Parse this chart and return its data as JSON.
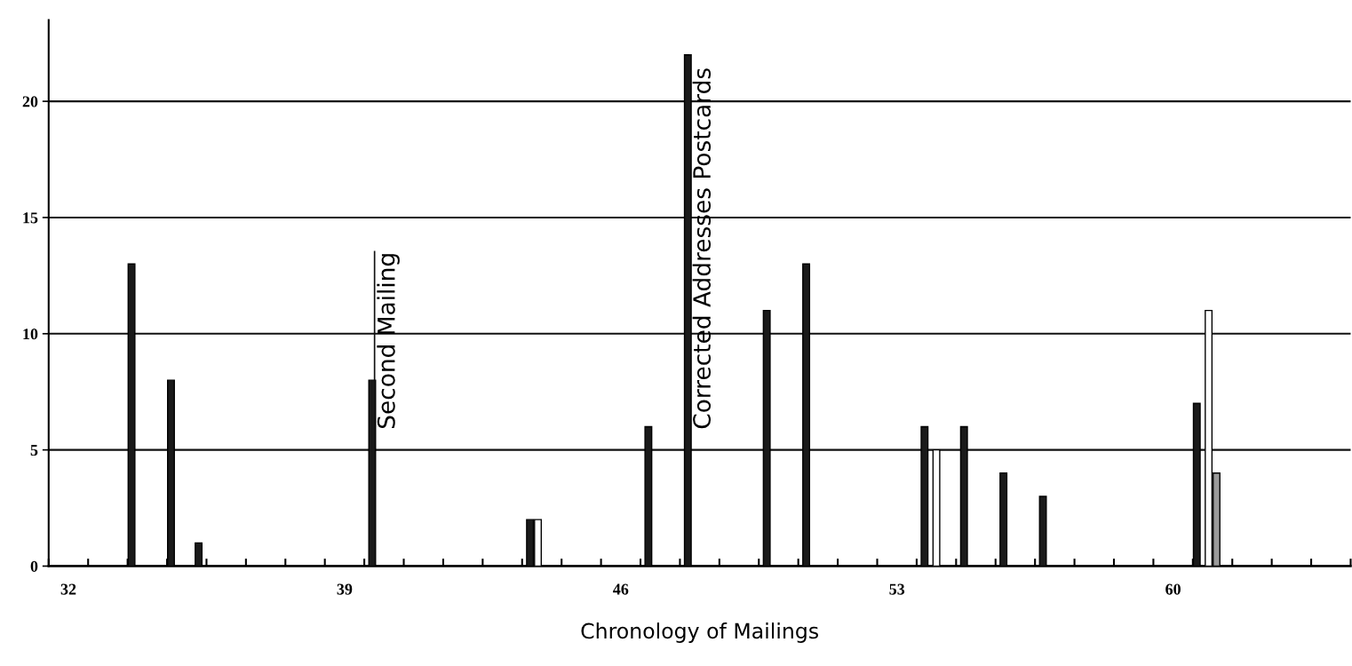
{
  "chart_data": {
    "type": "bar",
    "xlabel": "Chronology of Mailings",
    "xlim": [
      31.5,
      64.5
    ],
    "xticks": [
      32,
      39,
      46,
      53,
      60,
      {
        "value": 31.5,
        "label": null
      },
      {
        "value": 32.5,
        "label": null
      },
      {
        "value": 33.5,
        "label": null
      },
      {
        "value": 34.5,
        "label": null
      },
      {
        "value": 35.5,
        "label": null
      },
      {
        "value": 36.5,
        "label": null
      },
      {
        "value": 37.5,
        "label": null
      },
      {
        "value": 38.5,
        "label": null
      },
      {
        "value": 39.5,
        "label": null
      },
      {
        "value": 40.5,
        "label": null
      },
      {
        "value": 41.5,
        "label": null
      },
      {
        "value": 42.5,
        "label": null
      },
      {
        "value": 43.5,
        "label": null
      },
      {
        "value": 44.5,
        "label": null
      },
      {
        "value": 45.5,
        "label": null
      },
      {
        "value": 46.5,
        "label": null
      },
      {
        "value": 47.5,
        "label": null
      },
      {
        "value": 48.5,
        "label": null
      },
      {
        "value": 49.5,
        "label": null
      },
      {
        "value": 50.5,
        "label": null
      },
      {
        "value": 51.5,
        "label": null
      },
      {
        "value": 52.5,
        "label": null
      },
      {
        "value": 53.5,
        "label": null
      },
      {
        "value": 54.5,
        "label": null
      },
      {
        "value": 55.5,
        "label": null
      },
      {
        "value": 56.5,
        "label": null
      },
      {
        "value": 57.5,
        "label": null
      },
      {
        "value": 58.5,
        "label": null
      },
      {
        "value": 59.5,
        "label": null
      },
      {
        "value": 60.5,
        "label": null
      },
      {
        "value": 61.5,
        "label": null
      },
      {
        "value": 62.5,
        "label": null
      },
      {
        "value": 63.5,
        "label": null
      },
      {
        "value": 64.5,
        "label": null
      }
    ],
    "ylim": [
      0,
      23.5
    ],
    "yticks": [
      0,
      5,
      10,
      15,
      20
    ],
    "grid": "y",
    "series": [
      {
        "color": "#1a1a1a",
        "x": [
          33.6,
          34.6,
          35.3,
          39.7,
          43.7,
          46.7,
          47.7,
          49.7,
          50.7,
          53.7,
          54.7,
          55.7,
          56.7,
          60.6
        ],
        "values": [
          13,
          8,
          1,
          8,
          2,
          6,
          22,
          11,
          13,
          6,
          6,
          4,
          3,
          7
        ]
      },
      {
        "color": "#ffffff",
        "x": [
          43.9,
          54.0,
          60.9
        ],
        "values": [
          2,
          5,
          11
        ]
      },
      {
        "color": "#9a9a9a",
        "x": [
          61.1
        ],
        "values": [
          4
        ]
      }
    ],
    "annotations": [
      {
        "text": "Second Mailing",
        "x": 39.7,
        "y": 8
      },
      {
        "text": "Corrected Addresses Postcards",
        "x": 47.7,
        "y": 22
      }
    ]
  }
}
